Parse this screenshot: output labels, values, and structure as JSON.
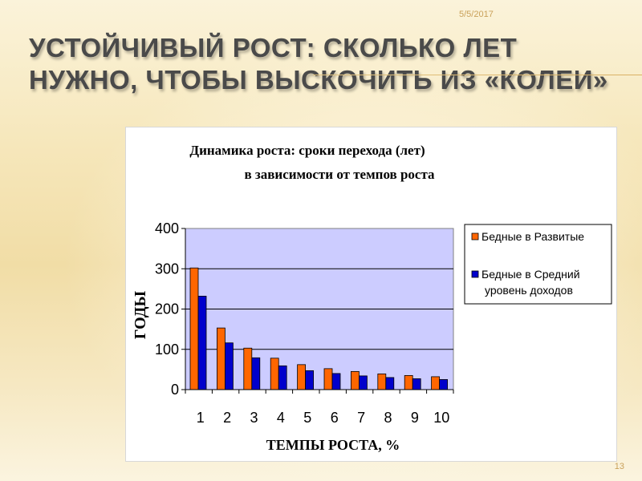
{
  "slide": {
    "date": "5/5/2017",
    "title": "Устойчивый рост: сколько лет нужно, чтобы выскочить из «колеи»",
    "page_number": "13"
  },
  "colors": {
    "plot_area": "#ccccff",
    "series_1": "#ff6600",
    "series_2": "#0000cc",
    "accent": "#c9a15a"
  },
  "chart_data": {
    "type": "bar",
    "title_line1": "Динамика роста: сроки перехода (лет)",
    "title_line2": "в зависимости от темпов роста",
    "xlabel": "ТЕМПЫ РОСТА, %",
    "ylabel": "ГОДЫ",
    "categories": [
      "1",
      "2",
      "3",
      "4",
      "5",
      "6",
      "7",
      "8",
      "9",
      "10"
    ],
    "ylim": [
      0,
      400
    ],
    "yticks": [
      "0",
      "100",
      "200",
      "300",
      "400"
    ],
    "grid": true,
    "legend_position": "right",
    "series": [
      {
        "name": "Бедные в Развитые",
        "values": [
          302,
          153,
          103,
          78,
          62,
          52,
          45,
          39,
          35,
          32
        ]
      },
      {
        "name": "Бедные в Средний уровень доходов",
        "values": [
          232,
          116,
          79,
          59,
          47,
          40,
          34,
          30,
          27,
          25
        ]
      }
    ],
    "legend_lines": [
      [
        "Бедные в Развитые"
      ],
      [
        "Бедные в Средний",
        "уровень доходов"
      ]
    ]
  }
}
